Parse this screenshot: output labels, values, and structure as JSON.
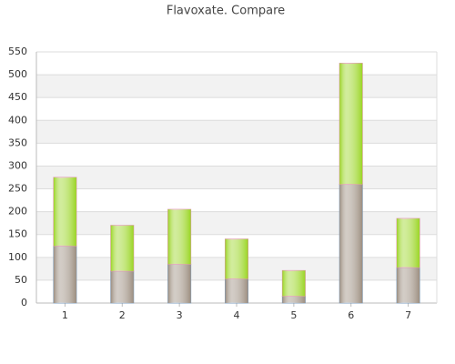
{
  "chart_data": {
    "type": "stacked-bar",
    "title": "Flavoxate. Compare",
    "categories": [
      "1",
      "2",
      "3",
      "4",
      "5",
      "6",
      "7"
    ],
    "series": [
      {
        "color": "#9c8e80",
        "values": [
          125,
          70,
          85,
          53,
          15,
          260,
          78
        ]
      },
      {
        "color": "#9ad524",
        "values": [
          150,
          100,
          120,
          87,
          56,
          265,
          107
        ]
      }
    ],
    "ylim": [
      0,
      550
    ],
    "yticks": [
      0,
      50,
      100,
      150,
      200,
      250,
      300,
      350,
      400,
      450,
      500,
      550
    ],
    "grid": true
  }
}
